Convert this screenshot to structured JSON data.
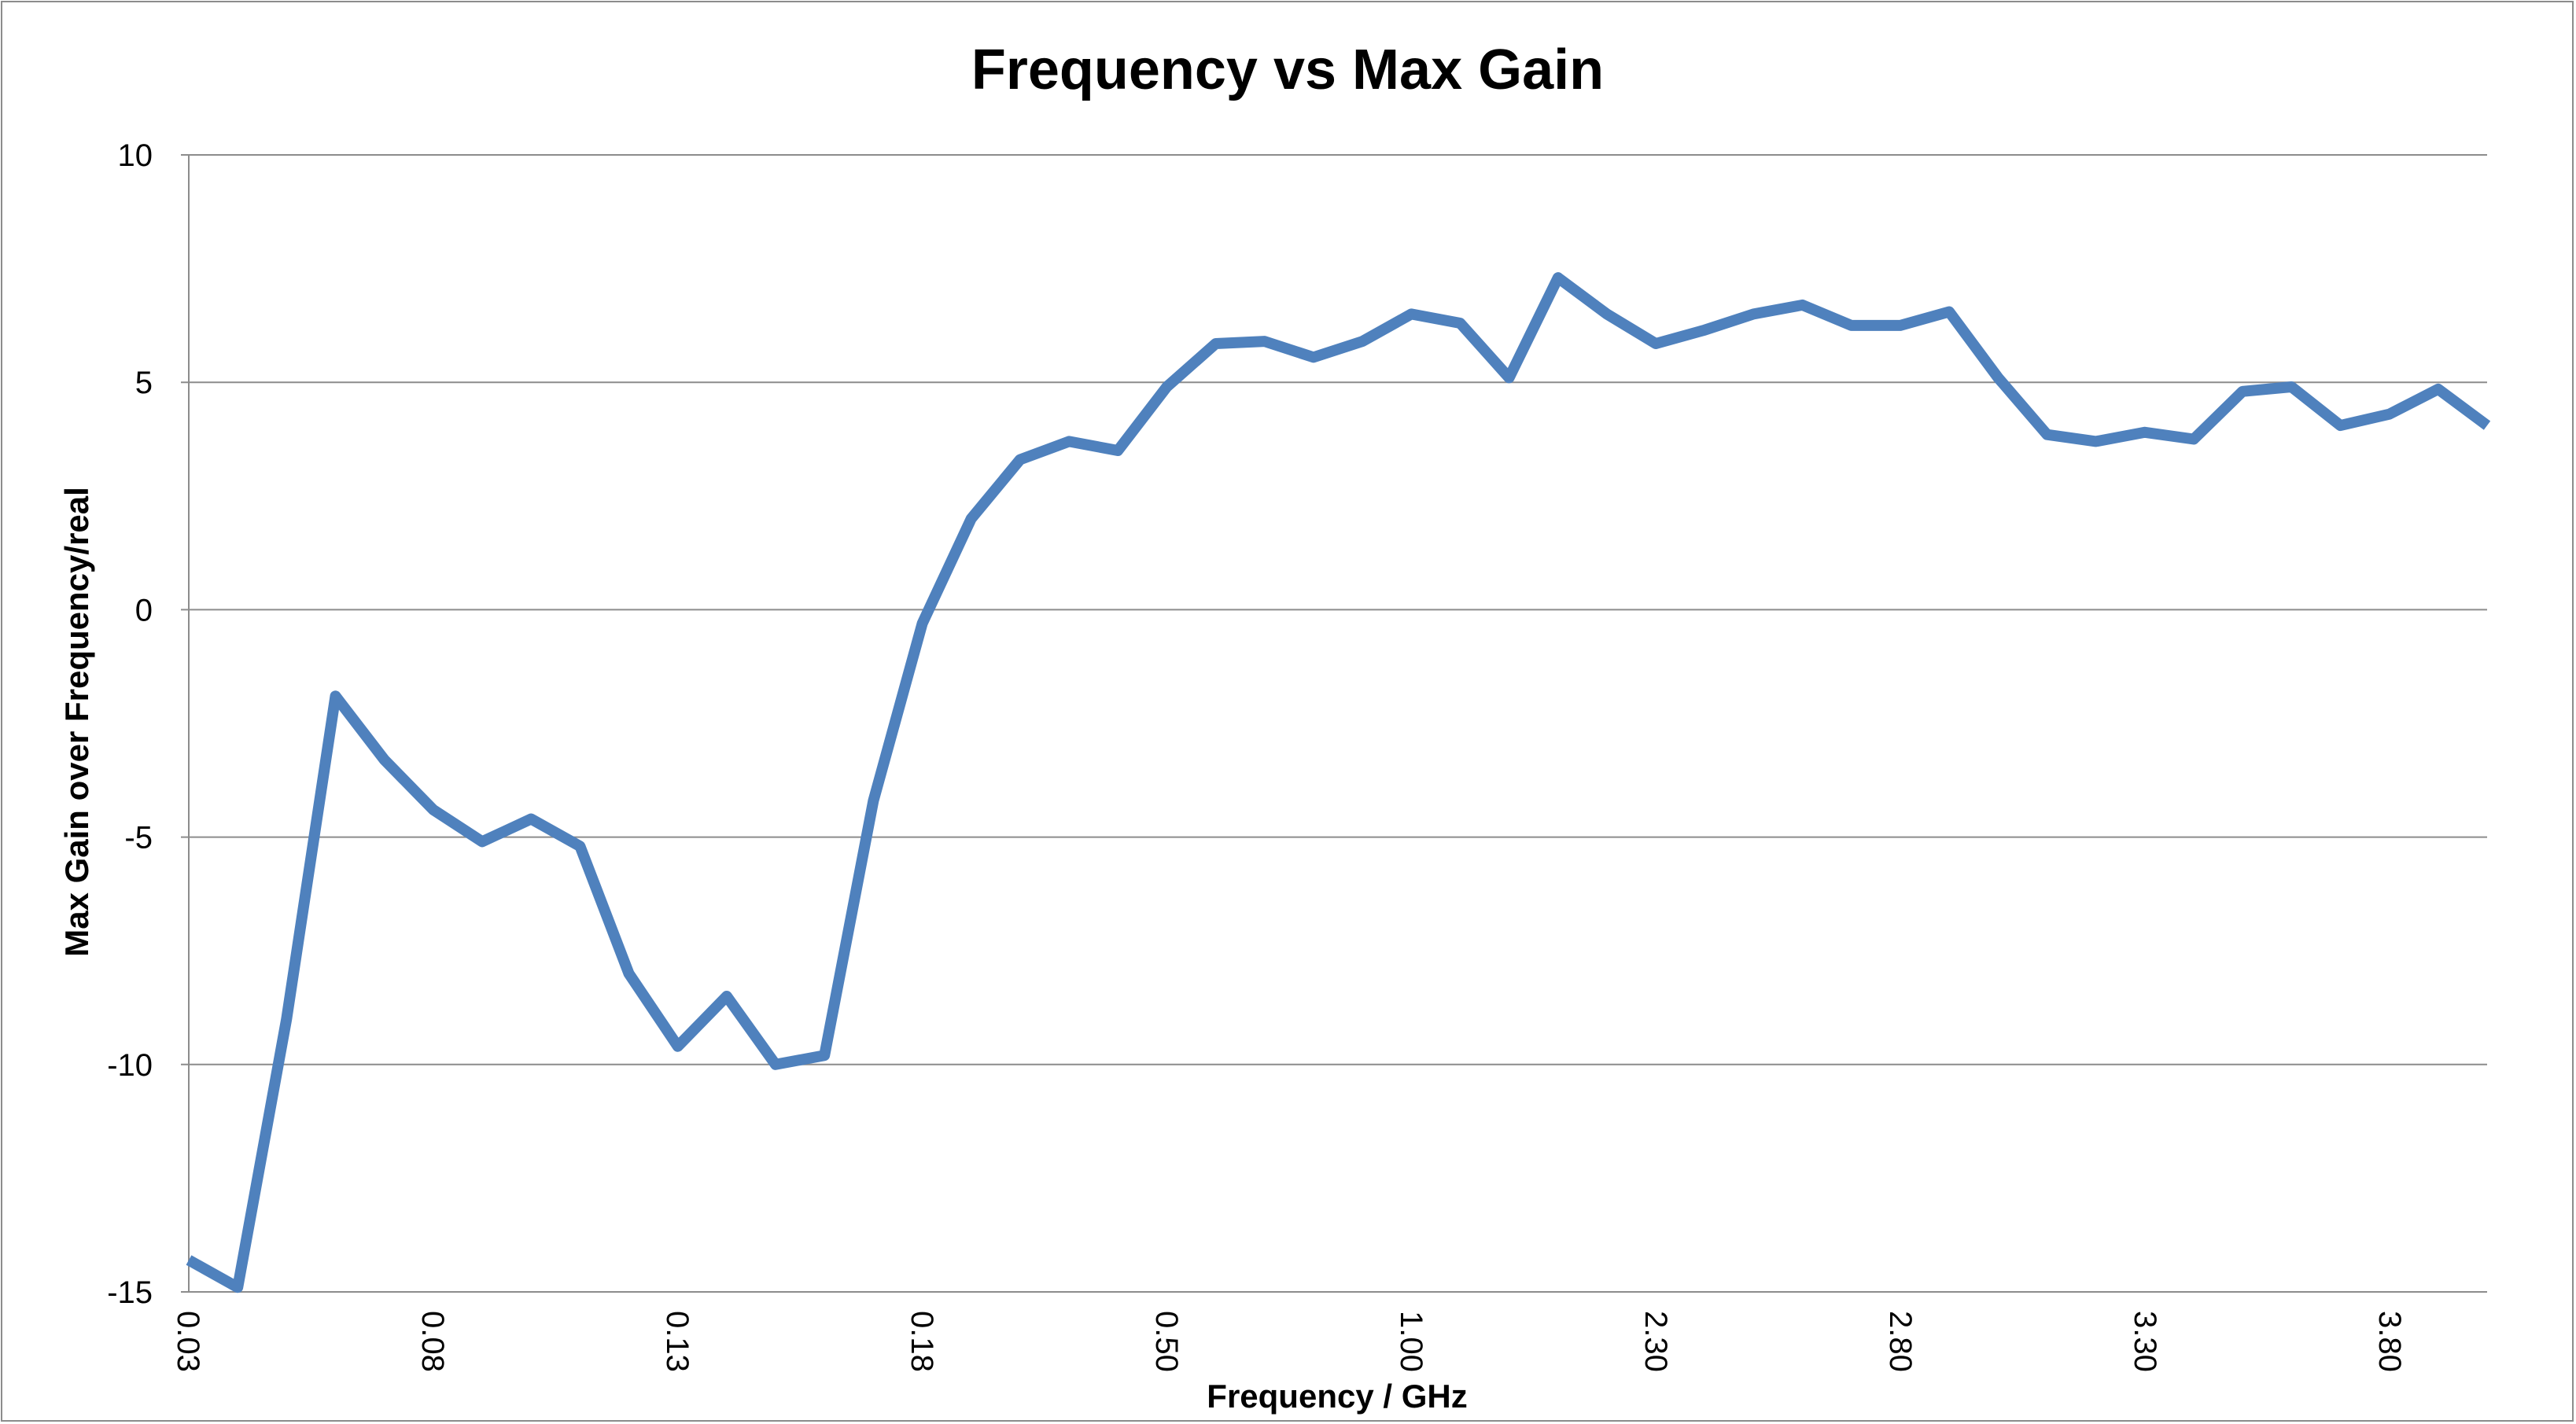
{
  "chart_data": {
    "type": "line",
    "title": "Frequency vs Max Gain",
    "xlabel": "Frequency / GHz",
    "ylabel": "Max Gain over Frequency/real",
    "x_tick_labels": [
      "0.03",
      "0.08",
      "0.13",
      "0.18",
      "0.50",
      "1.00",
      "2.30",
      "2.80",
      "3.30",
      "3.80"
    ],
    "y_ticks": [
      10,
      5,
      0,
      -5,
      -10,
      -15
    ],
    "ylim": [
      -15,
      10
    ],
    "grid": "horizontal",
    "legend": "none",
    "series": [
      {
        "color": "#4f81bd",
        "values": [
          -14.3,
          -14.9,
          -9.0,
          -1.9,
          -3.3,
          -4.4,
          -5.1,
          -4.6,
          -5.2,
          -8.0,
          -9.6,
          -8.5,
          -10.0,
          -9.8,
          -4.2,
          -0.3,
          2.0,
          3.3,
          3.7,
          3.5,
          4.9,
          5.85,
          5.9,
          5.55,
          5.9,
          6.5,
          6.3,
          5.1,
          7.3,
          6.5,
          5.85,
          6.15,
          6.5,
          6.7,
          6.25,
          6.25,
          6.55,
          5.1,
          3.85,
          3.7,
          3.9,
          3.75,
          4.8,
          4.9,
          4.05,
          4.3,
          4.85,
          4.05
        ]
      }
    ]
  }
}
